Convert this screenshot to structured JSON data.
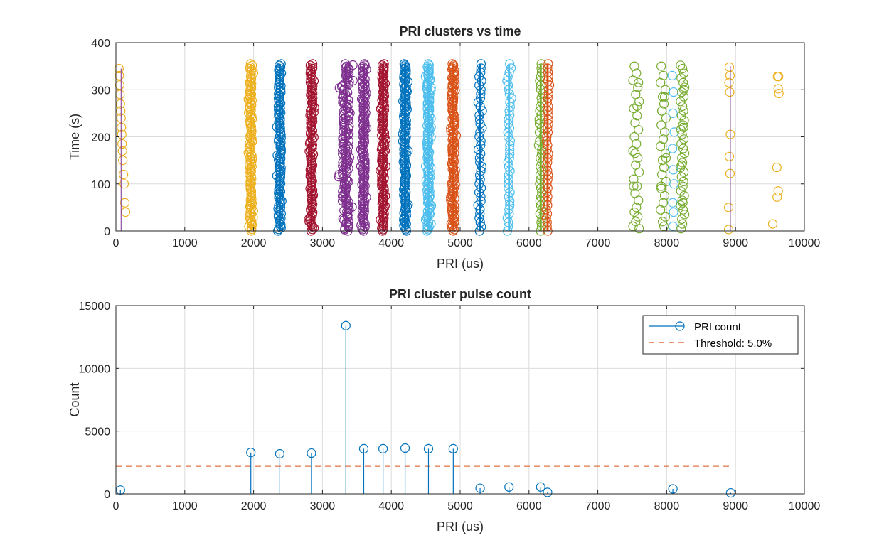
{
  "chart_data": [
    {
      "type": "scatter",
      "title": "PRI clusters vs time",
      "xlabel": "PRI (us)",
      "ylabel": "Time (s)",
      "xlim": [
        0,
        10000
      ],
      "ylim": [
        0,
        400
      ],
      "xticks": [
        "0",
        "1000",
        "2000",
        "3000",
        "4000",
        "5000",
        "6000",
        "7000",
        "8000",
        "9000",
        "10000"
      ],
      "yticks": [
        "0",
        "100",
        "200",
        "300",
        "400"
      ],
      "grid": true,
      "marker": "circle-open",
      "series": [
        {
          "color": "#EDB120",
          "kind": "sparse",
          "x": [
            45,
            50,
            55,
            60,
            65,
            70,
            75,
            80,
            85,
            90,
            95,
            100,
            110,
            120,
            130,
            140
          ],
          "y": [
            345,
            330,
            310,
            290,
            270,
            255,
            240,
            220,
            205,
            185,
            170,
            150,
            120,
            100,
            60,
            40
          ]
        },
        {
          "color": "#EDB120",
          "kind": "dense",
          "xcenter": 1960,
          "spread": 45,
          "ymax": 355,
          "count": 3300
        },
        {
          "color": "#0072BD",
          "kind": "dense",
          "xcenter": 2380,
          "spread": 45,
          "ymax": 355,
          "count": 3200
        },
        {
          "color": "#A2142F",
          "kind": "dense",
          "xcenter": 2840,
          "spread": 45,
          "ymax": 355,
          "count": 3250
        },
        {
          "color": "#7E2F8E",
          "kind": "dense",
          "xcenter": 3340,
          "spread": 110,
          "ymax": 355,
          "count": 13400
        },
        {
          "color": "#7E2F8E",
          "kind": "dense",
          "xcenter": 3600,
          "spread": 45,
          "ymax": 355,
          "count": 3600
        },
        {
          "color": "#A2142F",
          "kind": "dense",
          "xcenter": 3880,
          "spread": 45,
          "ymax": 355,
          "count": 3600
        },
        {
          "color": "#0072BD",
          "kind": "dense",
          "xcenter": 4200,
          "spread": 45,
          "ymax": 355,
          "count": 3650
        },
        {
          "color": "#4DBEEE",
          "kind": "dense",
          "xcenter": 4540,
          "spread": 45,
          "ymax": 355,
          "count": 3600
        },
        {
          "color": "#D95319",
          "kind": "dense",
          "xcenter": 4900,
          "spread": 45,
          "ymax": 355,
          "count": 3600
        },
        {
          "color": "#0072BD",
          "kind": "dense",
          "xcenter": 5290,
          "spread": 35,
          "ymax": 355,
          "count": 450
        },
        {
          "color": "#4DBEEE",
          "kind": "dense",
          "xcenter": 5710,
          "spread": 40,
          "ymax": 355,
          "count": 550
        },
        {
          "color": "#77AC30",
          "kind": "dense",
          "xcenter": 6170,
          "spread": 40,
          "ymax": 355,
          "count": 550
        },
        {
          "color": "#D95319",
          "kind": "dense",
          "xcenter": 6270,
          "spread": 30,
          "ymax": 355,
          "count": 120
        },
        {
          "color": "#77AC30",
          "kind": "sparse",
          "x": [
            7530,
            7560,
            7510,
            7580,
            7550,
            7600,
            7520,
            7570,
            7540,
            7590,
            7530,
            7560,
            7510,
            7580,
            7550,
            7600,
            7520,
            7570,
            7540,
            7590,
            7560,
            7530,
            7580,
            7550,
            7510,
            7600,
            7570,
            7540,
            7520,
            7590
          ],
          "y": [
            350,
            335,
            320,
            305,
            290,
            275,
            260,
            245,
            230,
            215,
            200,
            185,
            170,
            155,
            140,
            125,
            110,
            95,
            80,
            65,
            50,
            40,
            30,
            20,
            10,
            5,
            265,
            165,
            95,
            315
          ]
        },
        {
          "color": "#77AC30",
          "kind": "sparse",
          "x": [
            7920,
            7950,
            7910,
            7980,
            7940,
            7960,
            7930,
            7990,
            7920,
            7970,
            7950,
            7910,
            7980,
            7940,
            7960,
            7930,
            7990,
            7920,
            7970,
            7950,
            7910,
            7980,
            7940,
            7960,
            7930,
            7990,
            7920,
            7970
          ],
          "y": [
            350,
            330,
            315,
            300,
            285,
            270,
            255,
            240,
            225,
            210,
            195,
            180,
            165,
            150,
            135,
            120,
            105,
            90,
            75,
            60,
            45,
            30,
            20,
            10,
            255,
            155,
            95,
            285
          ]
        },
        {
          "color": "#4DBEEE",
          "kind": "sparse",
          "x": [
            8080,
            8100,
            8090,
            8110,
            8085,
            8095,
            8105,
            8088,
            8100,
            8092
          ],
          "y": [
            330,
            295,
            250,
            210,
            175,
            130,
            100,
            60,
            40,
            10
          ]
        },
        {
          "color": "#77AC30",
          "kind": "sparse",
          "x": [
            8200,
            8230,
            8250,
            8210,
            8240,
            8260,
            8220,
            8250,
            8200,
            8230,
            8245,
            8215,
            8255,
            8235,
            8205,
            8225,
            8250,
            8210,
            8240,
            8260,
            8220,
            8230,
            8200,
            8250,
            8215,
            8245,
            8235,
            8205,
            8255,
            8225,
            8200,
            8240,
            8260,
            8220,
            8230,
            8210,
            8250,
            8245,
            8215,
            8235
          ],
          "y": [
            352,
            345,
            335,
            325,
            315,
            305,
            295,
            285,
            275,
            265,
            255,
            245,
            235,
            225,
            215,
            205,
            195,
            185,
            175,
            165,
            155,
            145,
            135,
            125,
            115,
            105,
            95,
            85,
            75,
            65,
            55,
            45,
            35,
            25,
            15,
            5,
            300,
            220,
            140,
            60
          ]
        },
        {
          "color": "#EDB120",
          "kind": "sparse",
          "x": [
            8910,
            8920,
            8905,
            8915,
            8925,
            8910,
            8920,
            8900
          ],
          "y": [
            348,
            330,
            315,
            295,
            205,
            158,
            122,
            50
          ]
        },
        {
          "color": "#EDB120",
          "kind": "sparse",
          "x": [
            8900,
            9540,
            9610,
            9620,
            9630,
            9600,
            9620,
            9605,
            9625
          ],
          "y": [
            3,
            15,
            328,
            302,
            292,
            135,
            85,
            72,
            328
          ]
        }
      ],
      "vlines": [
        {
          "x": 75,
          "color": "#7E2F8E",
          "ymin": 0,
          "ymax": 345
        },
        {
          "x": 8925,
          "color": "#7E2F8E",
          "ymin": 0,
          "ymax": 350
        }
      ]
    },
    {
      "type": "stem",
      "title": "PRI cluster pulse count",
      "xlabel": "PRI (us)",
      "ylabel": "Count",
      "xlim": [
        0,
        10000
      ],
      "ylim": [
        0,
        15000
      ],
      "xticks": [
        "0",
        "1000",
        "2000",
        "3000",
        "4000",
        "5000",
        "6000",
        "7000",
        "8000",
        "9000",
        "10000"
      ],
      "yticks": [
        "0",
        "5000",
        "10000",
        "15000"
      ],
      "grid": true,
      "legend_position": "top-right",
      "series": [
        {
          "name": "PRI count",
          "color": "#0072BD",
          "x": [
            65,
            1960,
            2380,
            2840,
            3340,
            3600,
            3880,
            4200,
            4540,
            4900,
            5290,
            5710,
            6170,
            6270,
            8090,
            8930
          ],
          "y": [
            300,
            3300,
            3200,
            3250,
            13400,
            3600,
            3600,
            3650,
            3600,
            3600,
            450,
            550,
            550,
            120,
            400,
            80
          ]
        },
        {
          "name": "Threshold: 5.0%",
          "color": "#D95319",
          "dashed": true,
          "x": [
            0,
            8930
          ],
          "y": [
            2200,
            2200
          ]
        }
      ]
    }
  ]
}
